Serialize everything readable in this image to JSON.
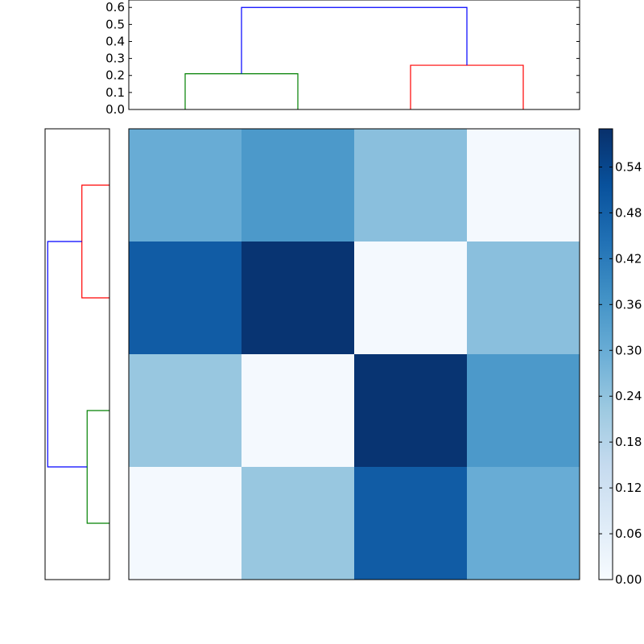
{
  "chart_data": {
    "type": "heatmap",
    "title": "",
    "matrix": [
      [
        0.3,
        0.35,
        0.25,
        0.01
      ],
      [
        0.49,
        0.58,
        0.01,
        0.25
      ],
      [
        0.23,
        0.01,
        0.58,
        0.35
      ],
      [
        0.01,
        0.23,
        0.49,
        0.3
      ]
    ],
    "color_map": "Blues",
    "colorbar": {
      "range": [
        0.0,
        0.59
      ],
      "ticks": [
        "0.00",
        "0.06",
        "0.12",
        "0.18",
        "0.24",
        "0.30",
        "0.36",
        "0.42",
        "0.48",
        "0.54"
      ]
    },
    "top_dendrogram": {
      "ylim": [
        0.0,
        0.62
      ],
      "ticks": [
        "0.0",
        "0.1",
        "0.2",
        "0.3",
        "0.4",
        "0.5",
        "0.6"
      ],
      "links": [
        {
          "left": 0,
          "right": 1,
          "height": 0.21,
          "color": "#008000"
        },
        {
          "left": 2,
          "right": 3,
          "height": 0.26,
          "color": "#ff0000"
        },
        {
          "left": 0.5,
          "right": 2.5,
          "height": 0.6,
          "color": "#0000ff"
        }
      ]
    },
    "left_dendrogram": {
      "links": [
        {
          "top": 0,
          "bottom": 1,
          "height": 0.21,
          "color": "#ff0000"
        },
        {
          "top": 2,
          "bottom": 3,
          "height": 0.17,
          "color": "#008000"
        },
        {
          "top": 0.5,
          "bottom": 2.5,
          "height": 0.47,
          "color": "#0000ff"
        }
      ]
    }
  }
}
